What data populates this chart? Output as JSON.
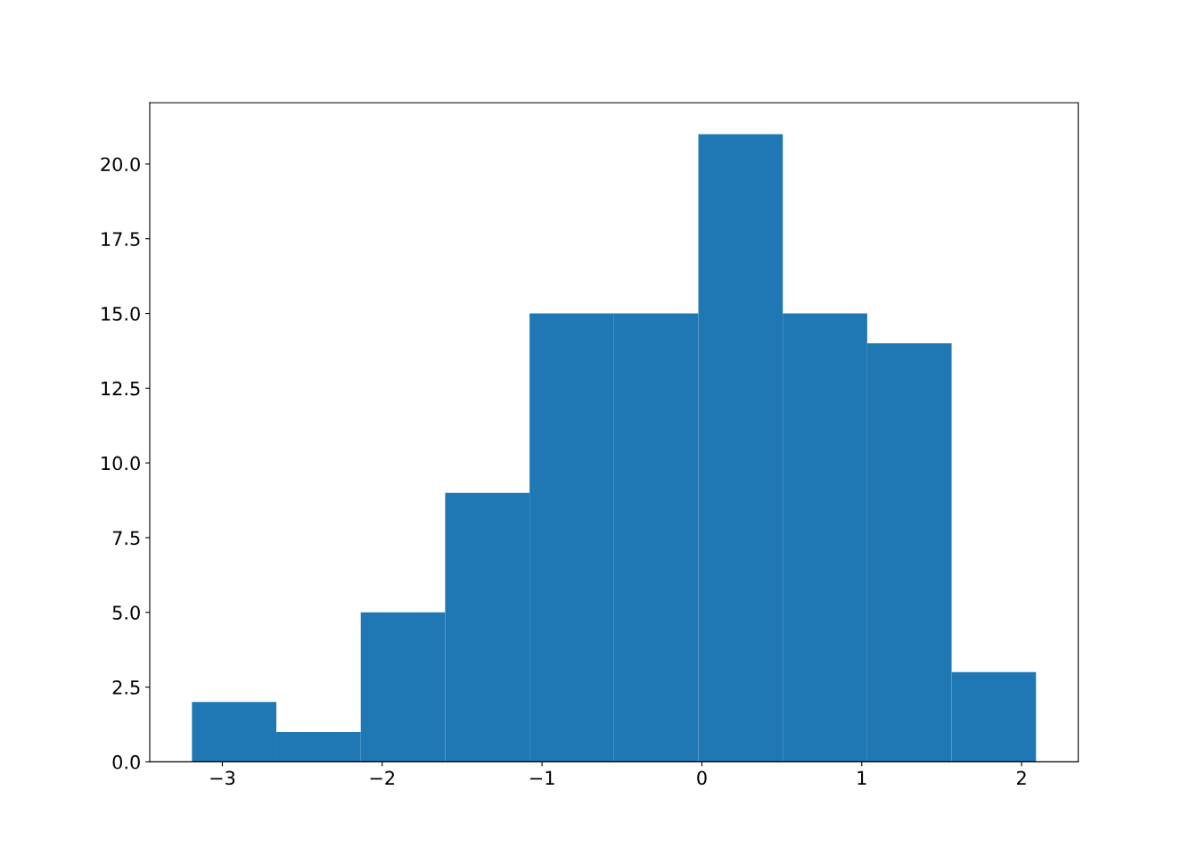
{
  "chart_data": {
    "type": "histogram",
    "bins": [
      -3.19,
      -2.662,
      -2.134,
      -1.606,
      -1.078,
      -0.55,
      -0.022,
      0.506,
      1.034,
      1.562,
      2.09
    ],
    "values": [
      2,
      1,
      5,
      9,
      15,
      15,
      21,
      15,
      14,
      3
    ],
    "color": "#1f77b4",
    "xlim": [
      -3.454,
      2.354
    ],
    "ylim": [
      0,
      22.05
    ],
    "xticks": [
      {
        "value": -3,
        "label": "−3"
      },
      {
        "value": -2,
        "label": "−2"
      },
      {
        "value": -1,
        "label": "−1"
      },
      0,
      1,
      2
    ],
    "yticks": [
      {
        "value": 0,
        "label": "0.0"
      },
      {
        "value": 2.5,
        "label": "2.5"
      },
      {
        "value": 5,
        "label": "5.0"
      },
      {
        "value": 7.5,
        "label": "7.5"
      },
      {
        "value": 10,
        "label": "10.0"
      },
      {
        "value": 12.5,
        "label": "12.5"
      },
      {
        "value": 15,
        "label": "15.0"
      },
      {
        "value": 17.5,
        "label": "17.5"
      },
      {
        "value": 20,
        "label": "20.0"
      }
    ],
    "grid": false
  }
}
